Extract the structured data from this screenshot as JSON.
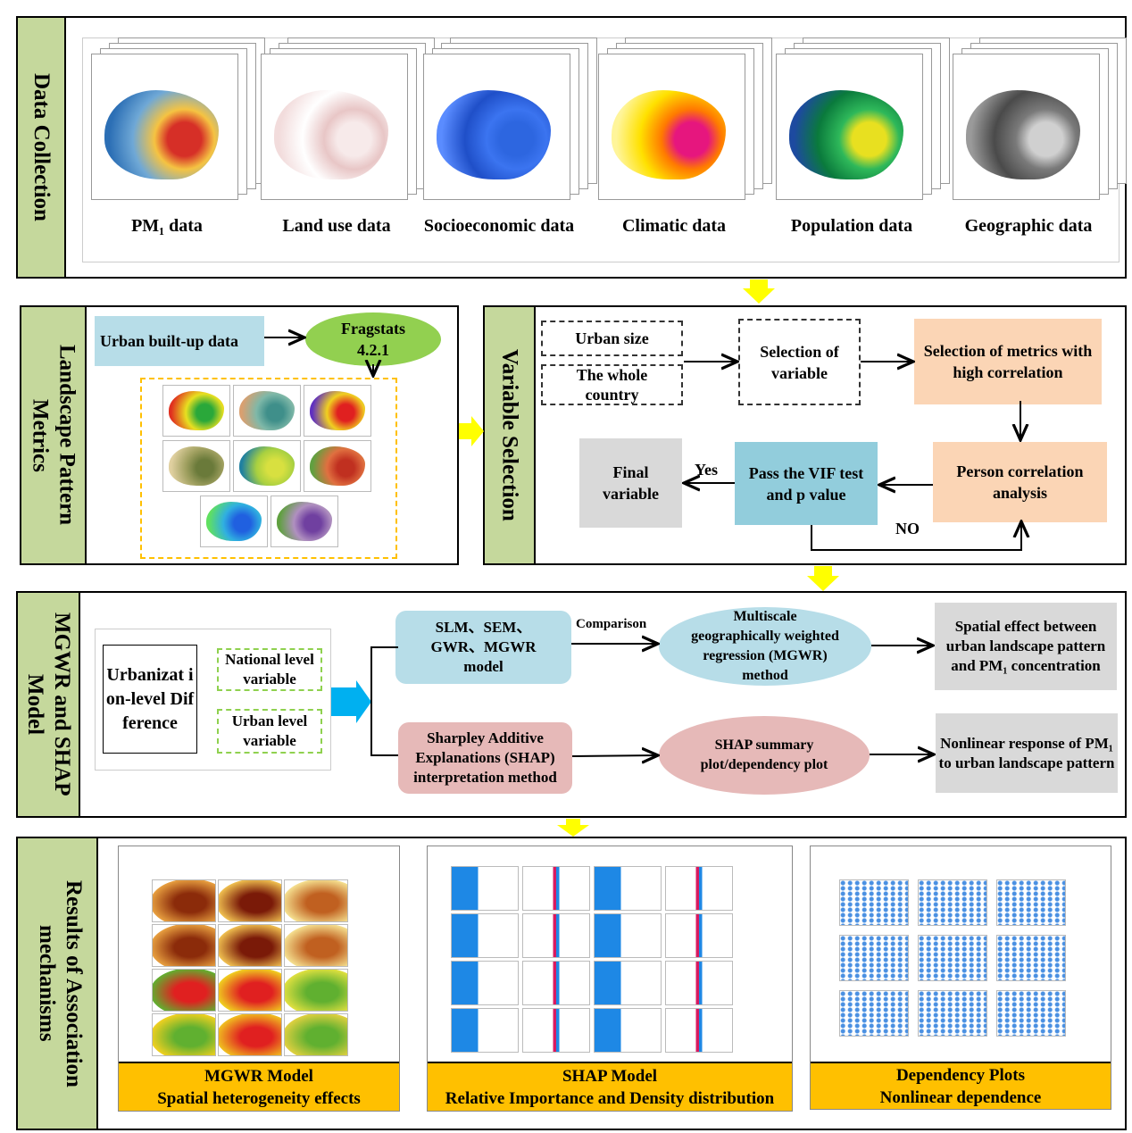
{
  "sections": {
    "data_collection": "Data Collection",
    "landscape": "Landscape Pattern Metrics",
    "variable_selection": "Variable Selection",
    "mgwr_shap": "MGWR and SHAP Model",
    "results": "Results of Association mechanisms"
  },
  "data_cards": [
    {
      "label": "PM₁ data",
      "colors": [
        "#d62f27",
        "#f5c342",
        "#6fa8d6",
        "#2c6fb5"
      ]
    },
    {
      "label": "Land use data",
      "colors": [
        "#f7eaea",
        "#e8c6c6",
        "#ffffff",
        "#f2dcdc"
      ]
    },
    {
      "label": "Socioeconomic data",
      "colors": [
        "#2d66e0",
        "#3b74f0",
        "#1f4fc8",
        "#5a8cff"
      ]
    },
    {
      "label": "Climatic data",
      "colors": [
        "#e6167e",
        "#ff7a00",
        "#ffe100",
        "#fff59a"
      ]
    },
    {
      "label": "Population  data",
      "colors": [
        "#e8e020",
        "#2eb85a",
        "#0a7a3c",
        "#1d4aa0"
      ]
    },
    {
      "label": "Geographic data",
      "colors": [
        "#d0d0d0",
        "#7a7a7a",
        "#4a4a4a",
        "#9a9a9a"
      ]
    }
  ],
  "landscape": {
    "input": "Urban built-up data",
    "tool": "Fragstats 4.2.1",
    "maps": [
      [
        "#2aa83a",
        "#e8e020",
        "#e03020"
      ],
      [
        "#3f8f8a",
        "#7fb8a8",
        "#d9a070"
      ],
      [
        "#e02020",
        "#f0d020",
        "#6030c0"
      ],
      [
        "#6a7a3a",
        "#a0a060",
        "#e0d0a0"
      ],
      [
        "#d8e040",
        "#a8d040",
        "#2080a0"
      ],
      [
        "#c03020",
        "#e07040",
        "#60a040"
      ],
      [
        "#2060e0",
        "#30b0e0",
        "#60e060"
      ],
      [
        "#7040a0",
        "#b090c0",
        "#60a040"
      ]
    ]
  },
  "variable_selection": {
    "urban_size": "Urban size",
    "whole_country": "The whole country",
    "selection_of_variable": "Selection of variable",
    "selection_metrics": "Selection of metrics with high correlation",
    "person_correlation": "Person correlation analysis",
    "vif_test": "Pass the VIF test and p value",
    "final_variable": "Final variable",
    "yes": "Yes",
    "no": "NO"
  },
  "mgwr": {
    "urbanization": "Urbanizat ion-level Difference",
    "national_level": "National level variable",
    "urban_level": "Urban level variable",
    "models": "SLM、SEM、GWR、MGWR model",
    "comparison": "Comparison",
    "mgwr_method": "Multiscale geographically weighted regression (MGWR) method",
    "spatial_effect": "Spatial effect between urban landscape pattern and PM₁ concentration",
    "shap_method": "Sharpley Additive Explanations (SHAP) interpretation method",
    "shap_plot": "SHAP summary plot/dependency plot",
    "nonlinear": "Nonlinear response of PM₁ to  urban landscape pattern"
  },
  "results": [
    {
      "title": "MGWR Model",
      "subtitle": "Spatial heterogeneity effects"
    },
    {
      "title": "SHAP Model",
      "subtitle": "Relative Importance and Density distribution"
    },
    {
      "title": "Dependency Plots",
      "subtitle": "Nonlinear dependence"
    }
  ],
  "colors": {
    "side": "#c5d89c",
    "arrow_yellow": "#ffff00",
    "arrow_blue": "#00b0f0",
    "peach": "#fbd5b5",
    "blue_box": "#92cddc",
    "grey": "#d9d9d9",
    "light_blue": "#b7dde8",
    "pink": "#e6b9b8",
    "gold": "#ffc000"
  }
}
